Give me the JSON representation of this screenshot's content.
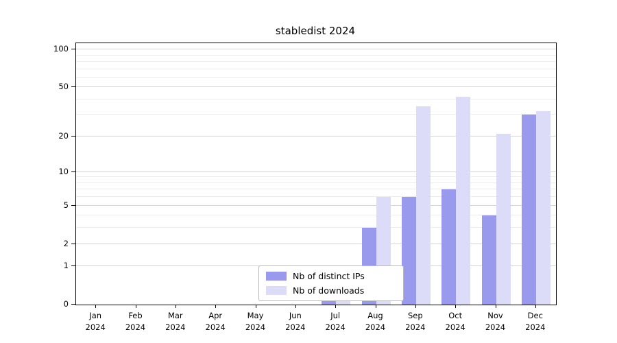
{
  "title": "stabledist 2024",
  "chart_data": {
    "type": "bar",
    "title": "stabledist 2024",
    "categories": [
      "Jan 2024",
      "Feb 2024",
      "Mar 2024",
      "Apr 2024",
      "May 2024",
      "Jun 2024",
      "Jul 2024",
      "Aug 2024",
      "Sep 2024",
      "Oct 2024",
      "Nov 2024",
      "Dec 2024"
    ],
    "series": [
      {
        "name": "Nb of distinct IPs",
        "color": "#9999ee",
        "values": [
          0,
          0,
          0,
          0,
          0,
          0,
          1,
          3,
          6,
          7,
          4,
          30
        ]
      },
      {
        "name": "Nb of downloads",
        "color": "#dcdcf8",
        "values": [
          0,
          0,
          0,
          0,
          0,
          0,
          1,
          6,
          35,
          42,
          21,
          32
        ]
      }
    ],
    "xlabel": "",
    "ylabel": "",
    "yscale": "log1p",
    "ylim": [
      0,
      112
    ],
    "yticks": [
      0,
      1,
      2,
      5,
      10,
      20,
      50,
      100
    ],
    "yticks_minor": [
      3,
      4,
      6,
      7,
      8,
      9,
      30,
      40,
      60,
      70,
      80,
      90
    ],
    "grid": true,
    "legend_position": "lower center inside"
  },
  "colors": {
    "grid_major": "#d4d4d4",
    "grid_minor": "#ececec",
    "axis": "#000000",
    "background": "#ffffff"
  }
}
